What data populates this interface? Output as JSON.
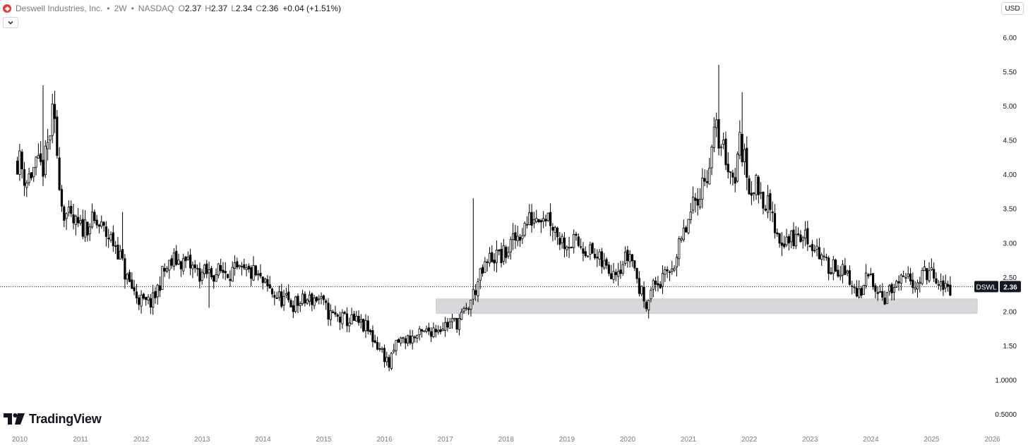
{
  "header": {
    "company": "Deswell Industries, Inc.",
    "interval": "2W",
    "exchange": "NASDAQ",
    "sep": "•",
    "ohlc": [
      {
        "key": "O",
        "value": "2.37"
      },
      {
        "key": "H",
        "value": "2.37"
      },
      {
        "key": "L",
        "value": "2.34"
      },
      {
        "key": "C",
        "value": "2.36"
      }
    ],
    "change": "+0.04 (+1.51%)"
  },
  "currency": "USD",
  "branding": {
    "name": "TradingView"
  },
  "chart_data": {
    "type": "candlestick",
    "symbol": "DSWL",
    "last_price": 2.36,
    "price_label": "2.36",
    "y_axis_ticks": [
      "6.00",
      "5.50",
      "5.00",
      "4.50",
      "4.00",
      "3.50",
      "3.00",
      "2.50",
      "2.00",
      "1.50",
      "1.0000",
      "0.5000"
    ],
    "x_axis_ticks": [
      "2010",
      "2011",
      "2012",
      "2013",
      "2014",
      "2015",
      "2016",
      "2017",
      "2018",
      "2019",
      "2020",
      "2021",
      "2022",
      "2023",
      "2024",
      "2025",
      "2026"
    ],
    "ylim": [
      0.45,
      6.2
    ],
    "xlim": [
      2009.86,
      2026.05
    ],
    "support_zone": {
      "from": 2016.85,
      "to": 2025.75,
      "low": 1.97,
      "high": 2.18
    },
    "key_points": [
      [
        2010.0,
        4.2
      ],
      [
        2010.1,
        3.9
      ],
      [
        2010.25,
        4.1
      ],
      [
        2010.4,
        4.1
      ],
      [
        2010.55,
        4.9
      ],
      [
        2010.7,
        3.5
      ],
      [
        2010.85,
        3.3
      ],
      [
        2011.0,
        3.2
      ],
      [
        2011.15,
        3.3
      ],
      [
        2011.3,
        3.25
      ],
      [
        2011.45,
        3.1
      ],
      [
        2011.6,
        2.95
      ],
      [
        2011.75,
        2.5
      ],
      [
        2011.9,
        2.25
      ],
      [
        2012.05,
        2.1
      ],
      [
        2012.2,
        2.15
      ],
      [
        2012.35,
        2.55
      ],
      [
        2012.55,
        2.75
      ],
      [
        2012.75,
        2.7
      ],
      [
        2012.95,
        2.55
      ],
      [
        2013.15,
        2.55
      ],
      [
        2013.4,
        2.6
      ],
      [
        2013.65,
        2.55
      ],
      [
        2013.85,
        2.55
      ],
      [
        2014.05,
        2.35
      ],
      [
        2014.25,
        2.2
      ],
      [
        2014.5,
        2.1
      ],
      [
        2014.7,
        2.15
      ],
      [
        2014.9,
        2.2
      ],
      [
        2015.1,
        1.95
      ],
      [
        2015.3,
        1.88
      ],
      [
        2015.5,
        1.85
      ],
      [
        2015.7,
        1.75
      ],
      [
        2015.85,
        1.55
      ],
      [
        2016.0,
        1.35
      ],
      [
        2016.08,
        1.2
      ],
      [
        2016.2,
        1.55
      ],
      [
        2016.4,
        1.6
      ],
      [
        2016.6,
        1.65
      ],
      [
        2016.8,
        1.75
      ],
      [
        2017.0,
        1.8
      ],
      [
        2017.2,
        1.85
      ],
      [
        2017.35,
        2.0
      ],
      [
        2017.55,
        2.45
      ],
      [
        2017.75,
        2.8
      ],
      [
        2017.95,
        2.8
      ],
      [
        2018.15,
        3.05
      ],
      [
        2018.35,
        3.3
      ],
      [
        2018.55,
        3.45
      ],
      [
        2018.7,
        3.4
      ],
      [
        2018.9,
        3.05
      ],
      [
        2019.1,
        3.0
      ],
      [
        2019.3,
        2.95
      ],
      [
        2019.5,
        2.75
      ],
      [
        2019.7,
        2.6
      ],
      [
        2019.9,
        2.7
      ],
      [
        2020.05,
        2.85
      ],
      [
        2020.2,
        2.3
      ],
      [
        2020.3,
        2.15
      ],
      [
        2020.45,
        2.4
      ],
      [
        2020.6,
        2.45
      ],
      [
        2020.8,
        2.8
      ],
      [
        2021.0,
        3.3
      ],
      [
        2021.15,
        3.7
      ],
      [
        2021.3,
        4.0
      ],
      [
        2021.45,
        4.65
      ],
      [
        2021.6,
        4.3
      ],
      [
        2021.75,
        3.9
      ],
      [
        2021.85,
        4.5
      ],
      [
        2022.0,
        3.85
      ],
      [
        2022.15,
        3.8
      ],
      [
        2022.3,
        3.55
      ],
      [
        2022.5,
        3.05
      ],
      [
        2022.7,
        3.05
      ],
      [
        2022.9,
        3.1
      ],
      [
        2023.1,
        2.95
      ],
      [
        2023.25,
        2.65
      ],
      [
        2023.4,
        2.7
      ],
      [
        2023.55,
        2.55
      ],
      [
        2023.7,
        2.35
      ],
      [
        2023.85,
        2.2
      ],
      [
        2023.95,
        2.55
      ],
      [
        2024.1,
        2.4
      ],
      [
        2024.2,
        2.2
      ],
      [
        2024.4,
        2.35
      ],
      [
        2024.6,
        2.45
      ],
      [
        2024.8,
        2.45
      ],
      [
        2024.95,
        2.6
      ],
      [
        2025.1,
        2.35
      ],
      [
        2025.2,
        2.32
      ],
      [
        2025.3,
        2.36
      ]
    ]
  }
}
